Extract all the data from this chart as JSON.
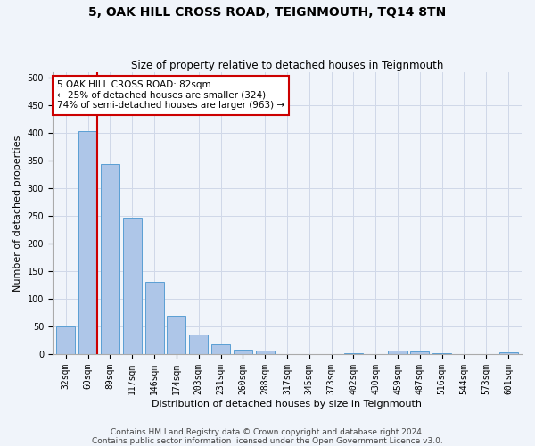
{
  "title": "5, OAK HILL CROSS ROAD, TEIGNMOUTH, TQ14 8TN",
  "subtitle": "Size of property relative to detached houses in Teignmouth",
  "xlabel": "Distribution of detached houses by size in Teignmouth",
  "ylabel": "Number of detached properties",
  "footer_line1": "Contains HM Land Registry data © Crown copyright and database right 2024.",
  "footer_line2": "Contains public sector information licensed under the Open Government Licence v3.0.",
  "bar_labels": [
    "32sqm",
    "60sqm",
    "89sqm",
    "117sqm",
    "146sqm",
    "174sqm",
    "203sqm",
    "231sqm",
    "260sqm",
    "288sqm",
    "317sqm",
    "345sqm",
    "373sqm",
    "402sqm",
    "430sqm",
    "459sqm",
    "487sqm",
    "516sqm",
    "544sqm",
    "573sqm",
    "601sqm"
  ],
  "bar_values": [
    50,
    403,
    344,
    246,
    130,
    70,
    35,
    18,
    8,
    7,
    0,
    0,
    0,
    2,
    0,
    6,
    5,
    2,
    0,
    0,
    3
  ],
  "bar_color": "#aec6e8",
  "bar_edgecolor": "#5a9fd4",
  "grid_color": "#d0d8e8",
  "background_color": "#f0f4fa",
  "subject_bin_index": 1,
  "red_line_color": "#cc0000",
  "annotation_text": "5 OAK HILL CROSS ROAD: 82sqm\n← 25% of detached houses are smaller (324)\n74% of semi-detached houses are larger (963) →",
  "annotation_box_color": "#ffffff",
  "annotation_box_edgecolor": "#cc0000",
  "ylim": [
    0,
    510
  ],
  "yticks": [
    0,
    50,
    100,
    150,
    200,
    250,
    300,
    350,
    400,
    450,
    500
  ],
  "title_fontsize": 10,
  "subtitle_fontsize": 8.5,
  "axis_label_fontsize": 8,
  "tick_fontsize": 7,
  "annotation_fontsize": 7.5,
  "footer_fontsize": 6.5
}
